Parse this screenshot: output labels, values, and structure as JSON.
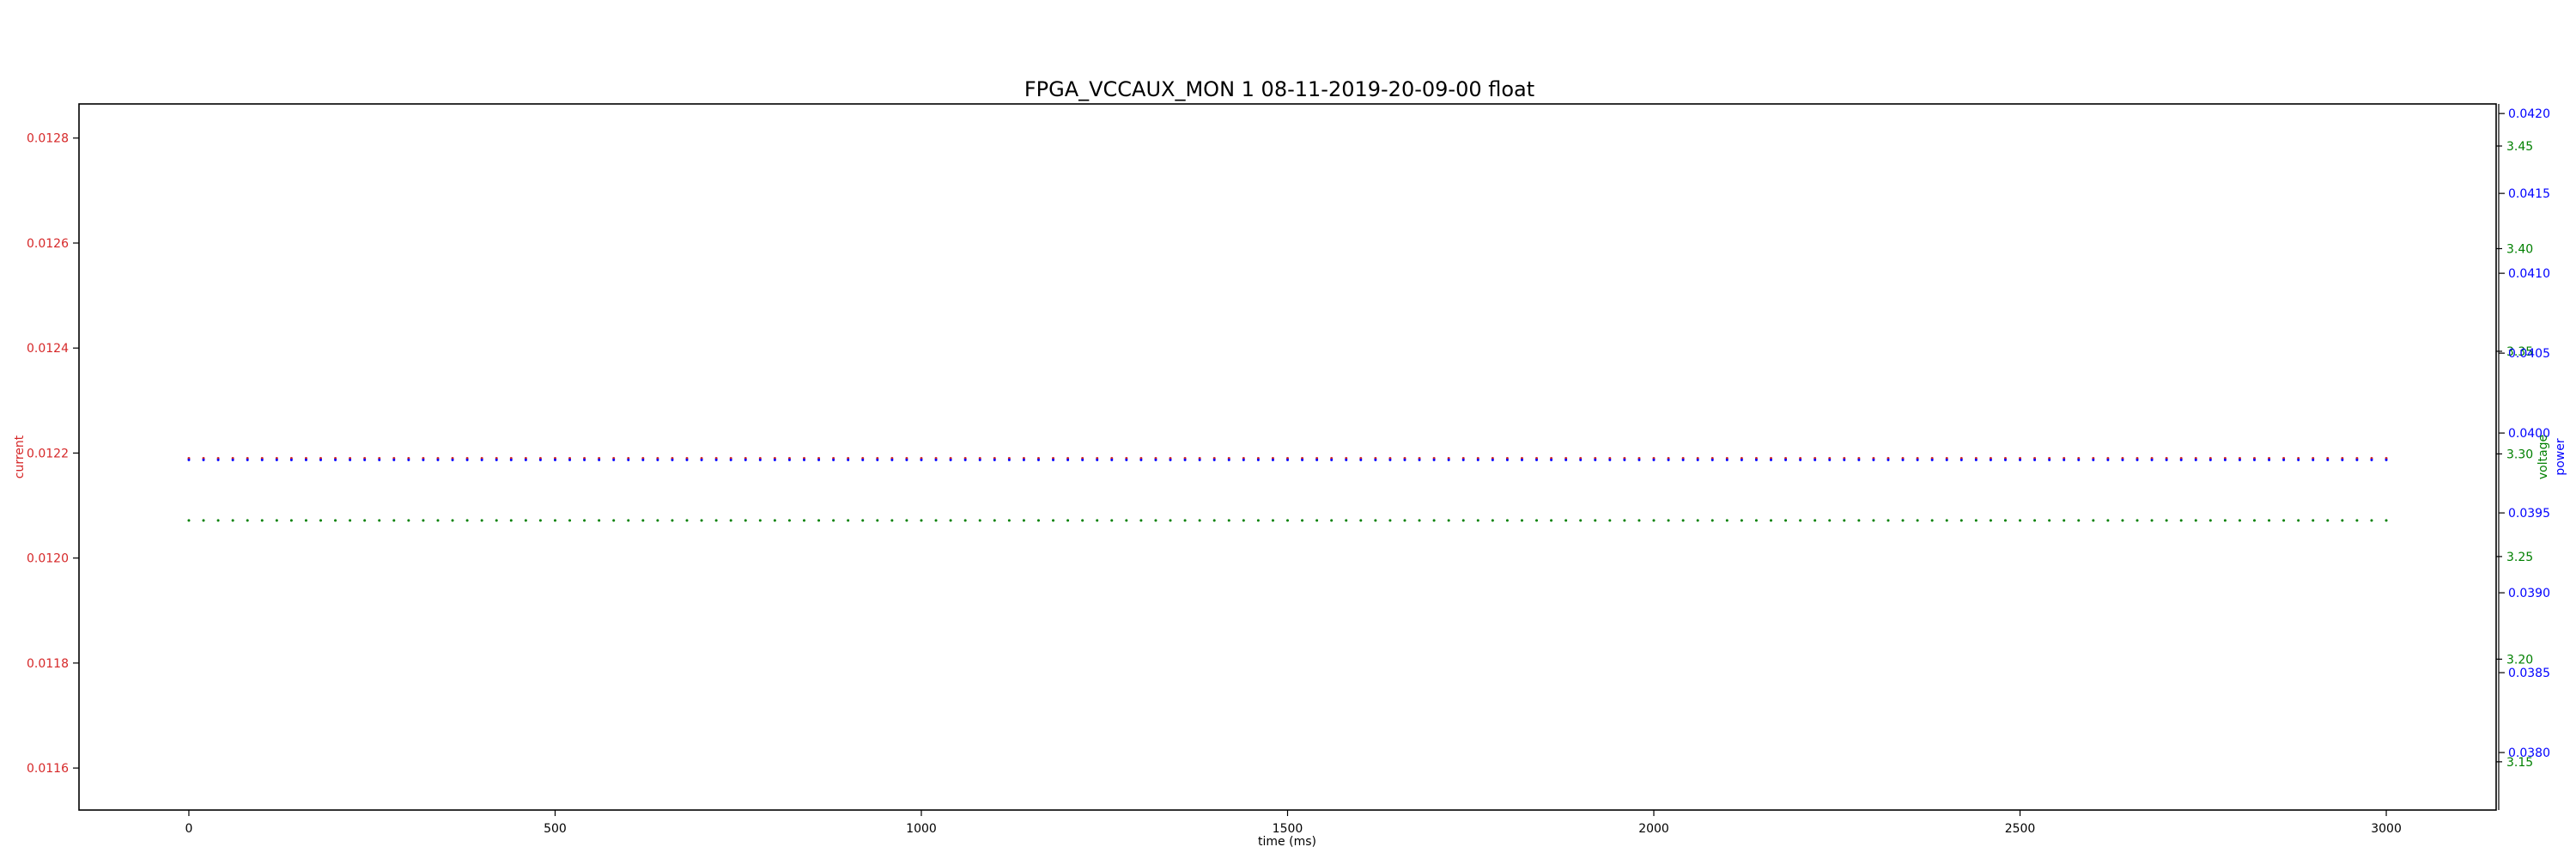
{
  "chart_data": {
    "type": "line",
    "title": "FPGA_VCCAUX_MON   1   08-11-2019-20-09-00   float",
    "xlabel": "time (ms)",
    "xlim": [
      -150,
      3150
    ],
    "xticks": [
      0,
      500,
      1000,
      1500,
      2000,
      2500,
      3000
    ],
    "grid": false,
    "axes": {
      "current": {
        "label": "current",
        "color": "#d62728",
        "side": "left",
        "ylim": [
          0.01152,
          0.012865
        ],
        "ticks": [
          0.0116,
          0.0118,
          0.012,
          0.0122,
          0.0124,
          0.0126,
          0.0128
        ],
        "tick_labels": [
          "0.0116",
          "0.0118",
          "0.0120",
          "0.0122",
          "0.0124",
          "0.0126",
          "0.0128"
        ]
      },
      "voltage": {
        "label": "voltage",
        "color": "#008000",
        "side": "right",
        "ylim": [
          3.1265,
          3.4705
        ],
        "ticks": [
          3.15,
          3.2,
          3.25,
          3.3,
          3.35,
          3.4,
          3.45
        ],
        "tick_labels": [
          "3.15",
          "3.20",
          "3.25",
          "3.30",
          "3.35",
          "3.40",
          "3.45"
        ]
      },
      "power": {
        "label": "power",
        "color": "#0000ff",
        "side": "right-outer",
        "ylim": [
          0.03764,
          0.04206
        ],
        "ticks": [
          0.038,
          0.0385,
          0.039,
          0.0395,
          0.04,
          0.0405,
          0.041,
          0.0415,
          0.042
        ],
        "tick_labels": [
          "0.0380",
          "0.0385",
          "0.0390",
          "0.0395",
          "0.0400",
          "0.0405",
          "0.0410",
          "0.0415",
          "0.0420"
        ]
      }
    },
    "series": [
      {
        "name": "current",
        "axis": "current",
        "color": "#d62728",
        "style": "dotted",
        "x_start": 0,
        "x_end": 3000,
        "x_step": 20,
        "value": 0.01219
      },
      {
        "name": "voltage",
        "axis": "voltage",
        "color": "#008000",
        "style": "dotted",
        "x_start": 0,
        "x_end": 3000,
        "x_step": 20,
        "value": 3.2676
      },
      {
        "name": "power",
        "axis": "power",
        "color": "#0000ff",
        "style": "dotted",
        "x_start": 0,
        "x_end": 3000,
        "x_step": 20,
        "value": 0.039832
      }
    ]
  }
}
